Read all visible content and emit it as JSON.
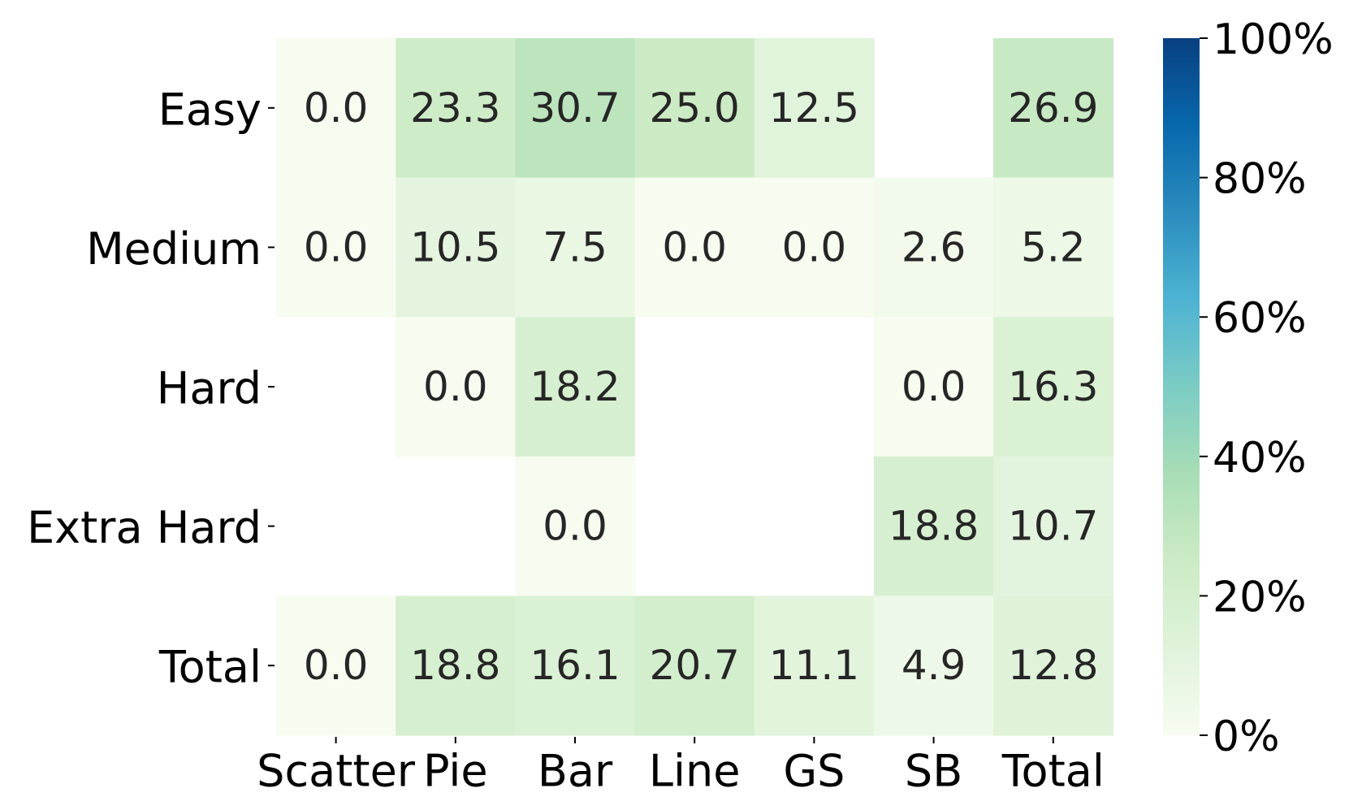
{
  "chart_data": {
    "type": "heatmap",
    "rows": [
      "Easy",
      "Medium",
      "Hard",
      "Extra Hard",
      "Total"
    ],
    "columns": [
      "Scatter",
      "Pie",
      "Bar",
      "Line",
      "GS",
      "SB",
      "Total"
    ],
    "values": [
      [
        0.0,
        23.3,
        30.7,
        25.0,
        12.5,
        null,
        26.9
      ],
      [
        0.0,
        10.5,
        7.5,
        0.0,
        0.0,
        2.6,
        5.2
      ],
      [
        null,
        0.0,
        18.2,
        null,
        null,
        0.0,
        16.3
      ],
      [
        null,
        null,
        0.0,
        null,
        null,
        18.8,
        10.7
      ],
      [
        0.0,
        18.8,
        16.1,
        20.7,
        11.1,
        4.9,
        12.8
      ]
    ],
    "value_range": [
      0,
      100
    ],
    "colormap": "GnBu",
    "colormap_stops": [
      "#f7fcf0",
      "#e0f3db",
      "#ccebc5",
      "#a8ddb5",
      "#7bccc4",
      "#4eb3d3",
      "#2b8cbe",
      "#0868ac",
      "#084081"
    ],
    "colorbar": {
      "ticks": [
        0,
        20,
        40,
        60,
        80,
        100
      ],
      "tick_labels": [
        "0%",
        "20%",
        "40%",
        "60%",
        "80%",
        "100%"
      ],
      "position": "right"
    },
    "title": "",
    "xlabel": "",
    "ylabel": ""
  }
}
